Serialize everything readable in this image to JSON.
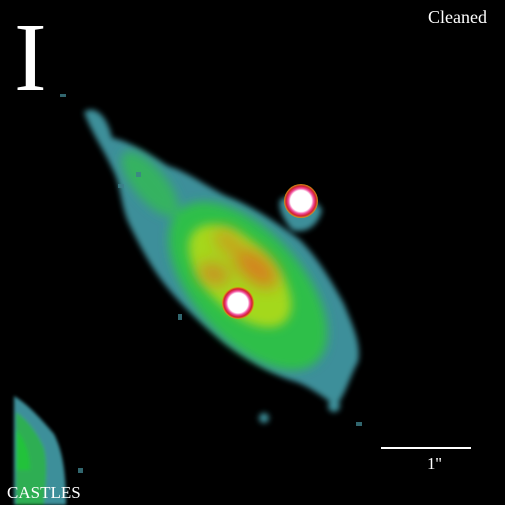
{
  "image": {
    "filter_label": "I",
    "status_label": "Cleaned",
    "credit": "CASTLES",
    "scale_bar_label": "1''"
  },
  "colors": {
    "background": "#000000",
    "outer_halo": "#3d8f9a",
    "mid_glow": "#34c24a",
    "inner_glow": "#a4d81e",
    "core_orange": "#d4841a",
    "point_source_ring": "#e0287a",
    "point_source_core": "#ffffff",
    "label_text": "#ffffff"
  }
}
